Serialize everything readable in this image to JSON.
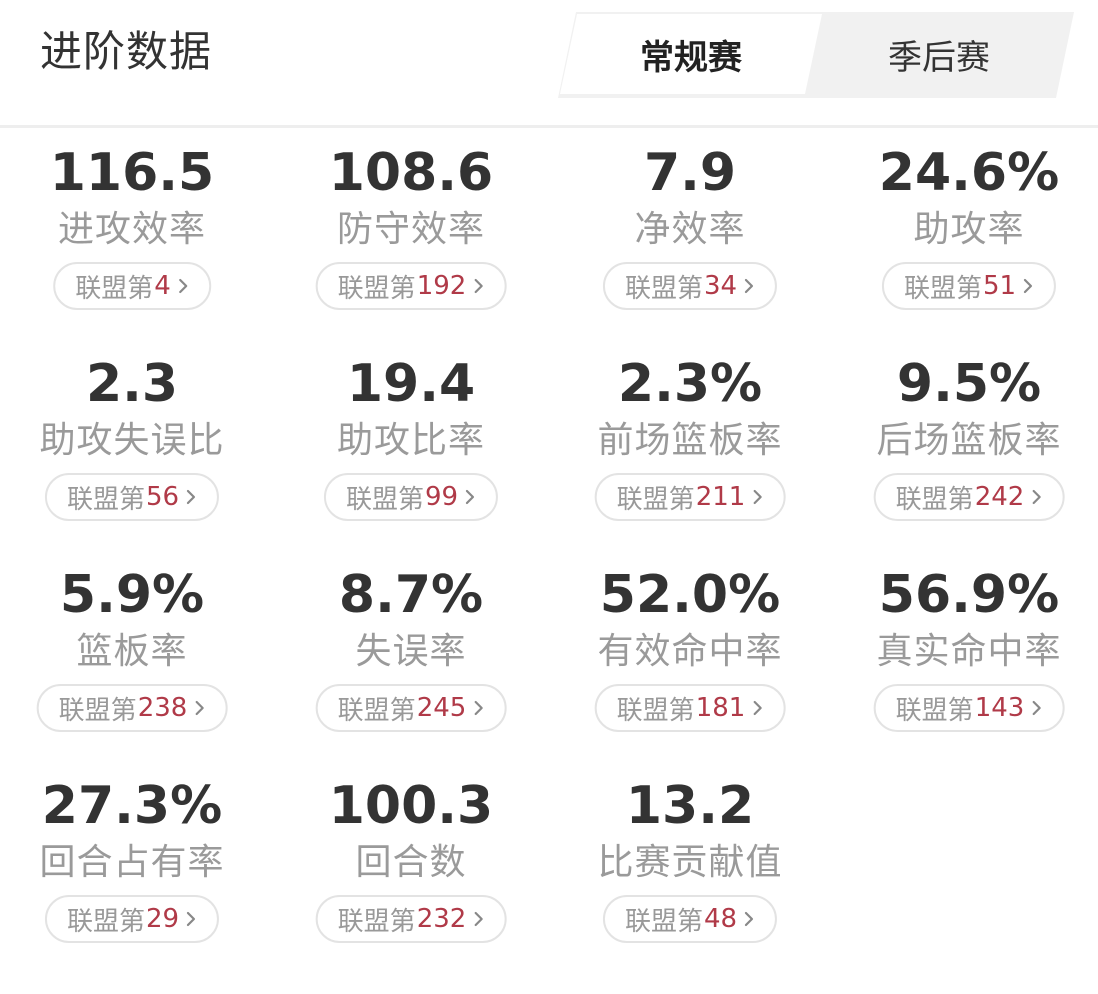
{
  "header": {
    "title": "进阶数据",
    "tabs": [
      {
        "label": "常规赛",
        "active": true
      },
      {
        "label": "季后赛",
        "active": false
      }
    ]
  },
  "rank_prefix": "联盟第",
  "colors": {
    "rank_number": "#b03a48",
    "value": "#333333",
    "label": "#9a9a9a"
  },
  "stats": [
    {
      "value": "116.5",
      "label": "进攻效率",
      "rank": "4"
    },
    {
      "value": "108.6",
      "label": "防守效率",
      "rank": "192"
    },
    {
      "value": "7.9",
      "label": "净效率",
      "rank": "34"
    },
    {
      "value": "24.6%",
      "label": "助攻率",
      "rank": "51"
    },
    {
      "value": "2.3",
      "label": "助攻失误比",
      "rank": "56"
    },
    {
      "value": "19.4",
      "label": "助攻比率",
      "rank": "99"
    },
    {
      "value": "2.3%",
      "label": "前场篮板率",
      "rank": "211"
    },
    {
      "value": "9.5%",
      "label": "后场篮板率",
      "rank": "242"
    },
    {
      "value": "5.9%",
      "label": "篮板率",
      "rank": "238"
    },
    {
      "value": "8.7%",
      "label": "失误率",
      "rank": "245"
    },
    {
      "value": "52.0%",
      "label": "有效命中率",
      "rank": "181"
    },
    {
      "value": "56.9%",
      "label": "真实命中率",
      "rank": "143"
    },
    {
      "value": "27.3%",
      "label": "回合占有率",
      "rank": "29"
    },
    {
      "value": "100.3",
      "label": "回合数",
      "rank": "232"
    },
    {
      "value": "13.2",
      "label": "比赛贡献值",
      "rank": "48"
    }
  ]
}
